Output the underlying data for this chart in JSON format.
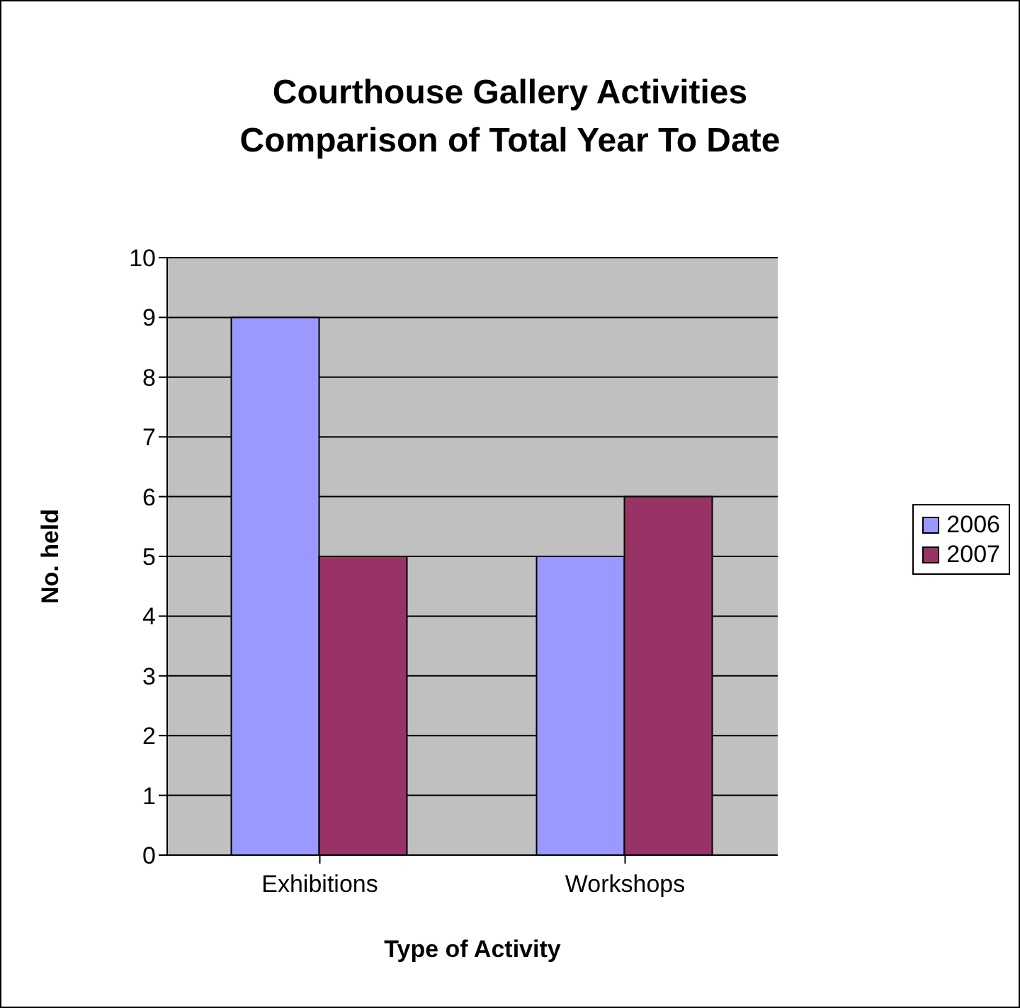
{
  "chart_data": {
    "type": "bar",
    "title": "Courthouse Gallery Activities\nComparison of Total Year To Date",
    "xlabel": "Type of Activity",
    "ylabel": "No. held",
    "categories": [
      "Exhibitions",
      "Workshops"
    ],
    "series": [
      {
        "name": "2006",
        "color": "#9999ff",
        "values": [
          9,
          5
        ]
      },
      {
        "name": "2007",
        "color": "#993366",
        "values": [
          5,
          6
        ]
      }
    ],
    "ylim": [
      0,
      10
    ],
    "yticks": [
      0,
      1,
      2,
      3,
      4,
      5,
      6,
      7,
      8,
      9,
      10
    ],
    "grid": "y",
    "legend": "right"
  }
}
